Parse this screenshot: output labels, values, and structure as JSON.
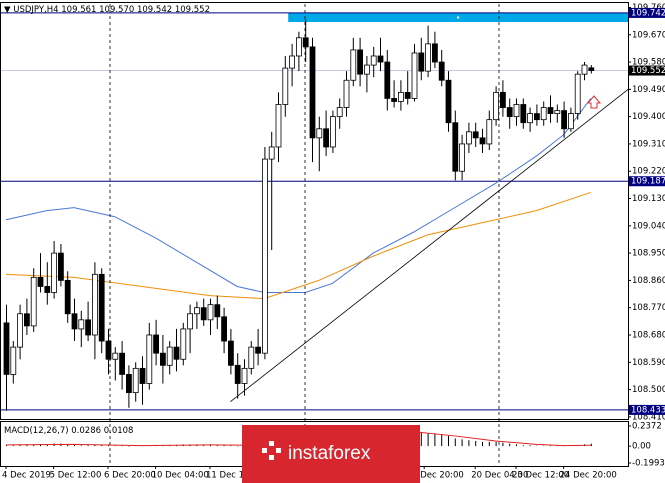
{
  "chart_data": [
    {
      "type": "candlestick",
      "header": {
        "symbol": "USDJPY,H4",
        "values": [
          "109.561",
          "109.570",
          "109.542",
          "109.552"
        ]
      },
      "ylim": [
        108.403,
        109.778
      ],
      "yticks": [
        {
          "value": 109.76,
          "label": "109.760"
        },
        {
          "value": 109.67,
          "label": "109.670"
        },
        {
          "value": 109.58,
          "label": "109.580"
        },
        {
          "value": 109.49,
          "label": "109.490"
        },
        {
          "value": 109.4,
          "label": "109.400"
        },
        {
          "value": 109.31,
          "label": "109.310"
        },
        {
          "value": 109.22,
          "label": "109.220"
        },
        {
          "value": 109.13,
          "label": "109.130"
        },
        {
          "value": 109.04,
          "label": "109.040"
        },
        {
          "value": 108.95,
          "label": "108.950"
        },
        {
          "value": 108.86,
          "label": "108.860"
        },
        {
          "value": 108.77,
          "label": "108.770"
        },
        {
          "value": 108.68,
          "label": "108.680"
        },
        {
          "value": 108.59,
          "label": "108.590"
        },
        {
          "value": 108.5,
          "label": "108.500"
        },
        {
          "value": 108.41,
          "label": "108.410"
        }
      ],
      "xticks": [
        {
          "value": 0,
          "label": "4 Dec 2019"
        },
        {
          "value": 7,
          "label": "5 Dec 12:00"
        },
        {
          "value": 15,
          "label": "6 Dec 20:00"
        },
        {
          "value": 22,
          "label": "10 Dec 04:00"
        },
        {
          "value": 30,
          "label": "11 Dec 12:"
        },
        {
          "value": 61.5,
          "label": "Dec 20:00"
        },
        {
          "value": 69,
          "label": "20 Dec 04:00"
        },
        {
          "value": 75,
          "label": "23 Dec 12:00"
        },
        {
          "value": 82,
          "label": "24 Dec 20:00"
        }
      ],
      "levels": [
        {
          "value": 109.742,
          "label": "109.742",
          "color": "#000080"
        },
        {
          "value": 109.552,
          "label": "109.552",
          "color": "#c8c8e8"
        },
        {
          "value": 109.187,
          "label": "109.187",
          "color": "#000080"
        },
        {
          "value": 108.433,
          "label": "108.433",
          "color": "#000080"
        }
      ],
      "zone": {
        "x0": 41.5,
        "y": [
          109.712,
          109.742
        ],
        "color": "#00a8e8"
      },
      "trendline": {
        "x": [
          33,
          91.5
        ],
        "y": [
          108.46,
          109.49
        ],
        "color": "#000000"
      },
      "ma": [
        {
          "color": "#4a78d8",
          "x": [
            0,
            6,
            10,
            16,
            22,
            28,
            34,
            38,
            44,
            48,
            54,
            60,
            66,
            72,
            78,
            82,
            86
          ],
          "values": [
            109.06,
            109.09,
            109.1,
            109.07,
            109.0,
            108.92,
            108.84,
            108.82,
            108.82,
            108.85,
            108.95,
            109.02,
            109.1,
            109.18,
            109.27,
            109.34,
            109.46
          ]
        },
        {
          "color": "#f0900a",
          "x": [
            0,
            10,
            20,
            30,
            38,
            46,
            54,
            62,
            70,
            78,
            86
          ],
          "values": [
            108.88,
            108.87,
            108.84,
            108.81,
            108.8,
            108.86,
            108.94,
            109.01,
            109.05,
            109.09,
            109.15
          ]
        }
      ],
      "ohlc": [
        [
          108.72,
          108.78,
          108.43,
          108.55
        ],
        [
          108.55,
          108.66,
          108.52,
          108.64
        ],
        [
          108.64,
          108.78,
          108.6,
          108.75
        ],
        [
          108.75,
          108.8,
          108.68,
          108.71
        ],
        [
          108.71,
          108.9,
          108.69,
          108.87
        ],
        [
          108.87,
          108.95,
          108.82,
          108.84
        ],
        [
          108.84,
          108.92,
          108.78,
          108.82
        ],
        [
          108.82,
          108.99,
          108.8,
          108.95
        ],
        [
          108.95,
          108.98,
          108.84,
          108.86
        ],
        [
          108.86,
          108.89,
          108.72,
          108.75
        ],
        [
          108.75,
          108.8,
          108.66,
          108.7
        ],
        [
          108.7,
          108.76,
          108.64,
          108.73
        ],
        [
          108.73,
          108.79,
          108.66,
          108.68
        ],
        [
          108.68,
          108.92,
          108.6,
          108.88
        ],
        [
          108.88,
          108.9,
          108.62,
          108.66
        ],
        [
          108.66,
          108.7,
          108.55,
          108.6
        ],
        [
          108.6,
          108.64,
          108.53,
          108.62
        ],
        [
          108.62,
          108.66,
          108.5,
          108.55
        ],
        [
          108.55,
          108.58,
          108.44,
          108.49
        ],
        [
          108.49,
          108.59,
          108.46,
          108.57
        ],
        [
          108.57,
          108.61,
          108.45,
          108.52
        ],
        [
          108.52,
          108.72,
          108.5,
          108.68
        ],
        [
          108.68,
          108.73,
          108.58,
          108.62
        ],
        [
          108.62,
          108.68,
          108.52,
          108.58
        ],
        [
          108.58,
          108.66,
          108.55,
          108.64
        ],
        [
          108.64,
          108.7,
          108.56,
          108.6
        ],
        [
          108.6,
          108.72,
          108.58,
          108.7
        ],
        [
          108.7,
          108.78,
          108.62,
          108.75
        ],
        [
          108.75,
          108.79,
          108.7,
          108.77
        ],
        [
          108.77,
          108.8,
          108.71,
          108.73
        ],
        [
          108.73,
          108.8,
          108.68,
          108.78
        ],
        [
          108.78,
          108.81,
          108.7,
          108.74
        ],
        [
          108.74,
          108.77,
          108.62,
          108.66
        ],
        [
          108.66,
          108.7,
          108.55,
          108.58
        ],
        [
          108.58,
          108.62,
          108.47,
          108.52
        ],
        [
          108.52,
          108.6,
          108.48,
          108.57
        ],
        [
          108.57,
          108.66,
          108.55,
          108.64
        ],
        [
          108.64,
          108.7,
          108.58,
          108.62
        ],
        [
          108.62,
          109.3,
          108.6,
          109.26
        ],
        [
          109.26,
          109.35,
          108.96,
          109.3
        ],
        [
          109.3,
          109.48,
          109.25,
          109.44
        ],
        [
          109.44,
          109.6,
          109.4,
          109.56
        ],
        [
          109.56,
          109.64,
          109.5,
          109.6
        ],
        [
          109.6,
          109.68,
          109.55,
          109.66
        ],
        [
          109.66,
          109.72,
          109.58,
          109.63
        ],
        [
          109.63,
          109.66,
          109.25,
          109.33
        ],
        [
          109.33,
          109.4,
          109.22,
          109.36
        ],
        [
          109.36,
          109.42,
          109.27,
          109.3
        ],
        [
          109.3,
          109.42,
          109.28,
          109.4
        ],
        [
          109.4,
          109.46,
          109.36,
          109.43
        ],
        [
          109.43,
          109.55,
          109.4,
          109.52
        ],
        [
          109.52,
          109.66,
          109.5,
          109.62
        ],
        [
          109.62,
          109.66,
          109.5,
          109.54
        ],
        [
          109.54,
          109.6,
          109.48,
          109.57
        ],
        [
          109.57,
          109.63,
          109.53,
          109.6
        ],
        [
          109.6,
          109.66,
          109.55,
          109.58
        ],
        [
          109.58,
          109.62,
          109.42,
          109.46
        ],
        [
          109.46,
          109.52,
          109.43,
          109.45
        ],
        [
          109.45,
          109.52,
          109.42,
          109.48
        ],
        [
          109.48,
          109.55,
          109.44,
          109.46
        ],
        [
          109.46,
          109.64,
          109.45,
          109.61
        ],
        [
          109.61,
          109.66,
          109.52,
          109.55
        ],
        [
          109.55,
          109.7,
          109.53,
          109.64
        ],
        [
          109.64,
          109.68,
          109.56,
          109.58
        ],
        [
          109.58,
          109.62,
          109.5,
          109.52
        ],
        [
          109.52,
          109.55,
          109.35,
          109.38
        ],
        [
          109.38,
          109.42,
          109.19,
          109.22
        ],
        [
          109.22,
          109.34,
          109.19,
          109.31
        ],
        [
          109.31,
          109.38,
          109.28,
          109.35
        ],
        [
          109.35,
          109.38,
          109.3,
          109.33
        ],
        [
          109.33,
          109.36,
          109.28,
          109.31
        ],
        [
          109.31,
          109.42,
          109.29,
          109.39
        ],
        [
          109.39,
          109.5,
          109.37,
          109.48
        ],
        [
          109.48,
          109.52,
          109.4,
          109.43
        ],
        [
          109.43,
          109.46,
          109.36,
          109.4
        ],
        [
          109.4,
          109.46,
          109.37,
          109.44
        ],
        [
          109.44,
          109.46,
          109.36,
          109.38
        ],
        [
          109.38,
          109.43,
          109.35,
          109.41
        ],
        [
          109.41,
          109.44,
          109.37,
          109.39
        ],
        [
          109.39,
          109.45,
          109.37,
          109.43
        ],
        [
          109.43,
          109.47,
          109.38,
          109.41
        ],
        [
          109.41,
          109.44,
          109.38,
          109.42
        ],
        [
          109.42,
          109.45,
          109.33,
          109.36
        ],
        [
          109.36,
          109.43,
          109.35,
          109.41
        ],
        [
          109.41,
          109.55,
          109.39,
          109.54
        ],
        [
          109.54,
          109.58,
          109.52,
          109.57
        ],
        [
          109.561,
          109.57,
          109.542,
          109.552
        ]
      ]
    },
    {
      "type": "macd",
      "indicator": "MACD(12,26,7)",
      "ylim": [
        -0.2347,
        0.2962
      ],
      "yticks": [
        0.2372,
        {
          "value": 0,
          "label": "0.00"
        },
        -0.1993
      ],
      "histogram": [
        0.01,
        0.01,
        0.015,
        0.02,
        0.02,
        0.025,
        0.02,
        0.03,
        0.03,
        0.02,
        0.015,
        0.01,
        0.01,
        0.02,
        0.015,
        0.01,
        0.005,
        0,
        -0.005,
        0,
        0.005,
        0.01,
        0.01,
        0.01,
        0.015,
        0.015,
        0.02,
        0.02,
        0.02,
        0.02,
        0.02,
        0.015,
        0.01,
        0,
        -0.005,
        0,
        0.005,
        0.01,
        0.05,
        0.09,
        0.12,
        0.16,
        0.19,
        0.21,
        0.22,
        0.2,
        0.2,
        0.19,
        0.19,
        0.19,
        0.2,
        0.21,
        0.21,
        0.21,
        0.2,
        0.2,
        0.19,
        0.18,
        0.17,
        0.16,
        0.16,
        0.16,
        0.15,
        0.15,
        0.14,
        0.12,
        0.09,
        0.08,
        0.07,
        0.06,
        0.05,
        0.05,
        0.05,
        0.04,
        0.03,
        0.02,
        0.01,
        0.01,
        0.005,
        0.005,
        0,
        0,
        0,
        0,
        0.01,
        0.02,
        0.0286
      ],
      "signal": {
        "color": "#e02020",
        "x": [
          0,
          10,
          20,
          30,
          37,
          40,
          44,
          48,
          54,
          60,
          66,
          72,
          78,
          82,
          86
        ],
        "values": [
          0.015,
          0.02,
          0.005,
          0.015,
          0.01,
          0.05,
          0.15,
          0.19,
          0.2,
          0.17,
          0.12,
          0.06,
          0.02,
          0.005,
          0.0108
        ]
      },
      "watermark": "instaforex"
    }
  ]
}
